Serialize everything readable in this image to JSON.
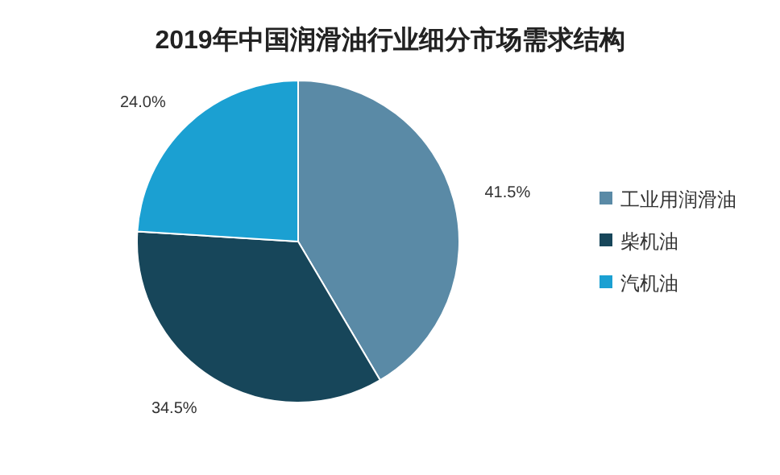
{
  "chart_data": {
    "type": "pie",
    "title": "2019年中国润滑油行业细分市场需求结构",
    "categories": [
      "工业用润滑油",
      "柴机油",
      "汽机油"
    ],
    "values": [
      41.5,
      34.5,
      24.0
    ],
    "value_labels": [
      "41.5%",
      "34.5%",
      "24.0%"
    ],
    "colors": [
      "#5a8aa6",
      "#17465a",
      "#1ba0d2"
    ],
    "legend": "right"
  }
}
